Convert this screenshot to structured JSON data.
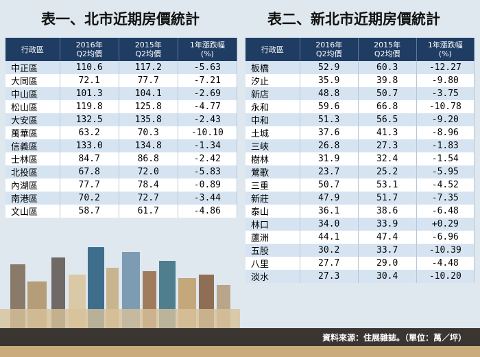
{
  "left": {
    "title": "表一、北市近期房價統計",
    "headers": [
      "行政區",
      "2016年\nQ2均價",
      "2015年\nQ2均價",
      "1年漲跌幅\n(%)"
    ],
    "rows": [
      [
        "中正區",
        "110.6",
        "117.2",
        "-5.63"
      ],
      [
        "大同區",
        "72.1",
        "77.7",
        "-7.21"
      ],
      [
        "中山區",
        "101.3",
        "104.1",
        "-2.69"
      ],
      [
        "松山區",
        "119.8",
        "125.8",
        "-4.77"
      ],
      [
        "大安區",
        "132.5",
        "135.8",
        "-2.43"
      ],
      [
        "萬華區",
        "63.2",
        "70.3",
        "-10.10"
      ],
      [
        "信義區",
        "133.0",
        "134.8",
        "-1.34"
      ],
      [
        "士林區",
        "84.7",
        "86.8",
        "-2.42"
      ],
      [
        "北投區",
        "67.8",
        "72.0",
        "-5.83"
      ],
      [
        "內湖區",
        "77.7",
        "78.4",
        "-0.89"
      ],
      [
        "南港區",
        "70.2",
        "72.7",
        "-3.44"
      ],
      [
        "文山區",
        "58.7",
        "61.7",
        "-4.86"
      ]
    ]
  },
  "right": {
    "title": "表二、新北市近期房價統計",
    "headers": [
      "行政區",
      "2016年\nQ2均價",
      "2015年\nQ2均價",
      "1年漲跌幅\n(%)"
    ],
    "rows": [
      [
        "板橋",
        "52.9",
        "60.3",
        "-12.27"
      ],
      [
        "汐止",
        "35.9",
        "39.8",
        "-9.80"
      ],
      [
        "新店",
        "48.8",
        "50.7",
        "-3.75"
      ],
      [
        "永和",
        "59.6",
        "66.8",
        "-10.78"
      ],
      [
        "中和",
        "51.3",
        "56.5",
        "-9.20"
      ],
      [
        "土城",
        "37.6",
        "41.3",
        "-8.96"
      ],
      [
        "三峽",
        "26.8",
        "27.3",
        "-1.83"
      ],
      [
        "樹林",
        "31.9",
        "32.4",
        "-1.54"
      ],
      [
        "鶯歌",
        "23.7",
        "25.2",
        "-5.95"
      ],
      [
        "三重",
        "50.7",
        "53.1",
        "-4.52"
      ],
      [
        "新莊",
        "47.9",
        "51.7",
        "-7.35"
      ],
      [
        "泰山",
        "36.1",
        "38.6",
        "-6.48"
      ],
      [
        "林口",
        "34.0",
        "33.9",
        "+0.29"
      ],
      [
        "蘆洲",
        "44.1",
        "47.4",
        "-6.96"
      ],
      [
        "五股",
        "30.2",
        "33.7",
        "-10.39"
      ],
      [
        "八里",
        "27.7",
        "29.0",
        "-4.48"
      ],
      [
        "淡水",
        "27.3",
        "30.4",
        "-10.20"
      ]
    ]
  },
  "footer": "資料來源：住展雜誌。（單位：萬／坪）"
}
